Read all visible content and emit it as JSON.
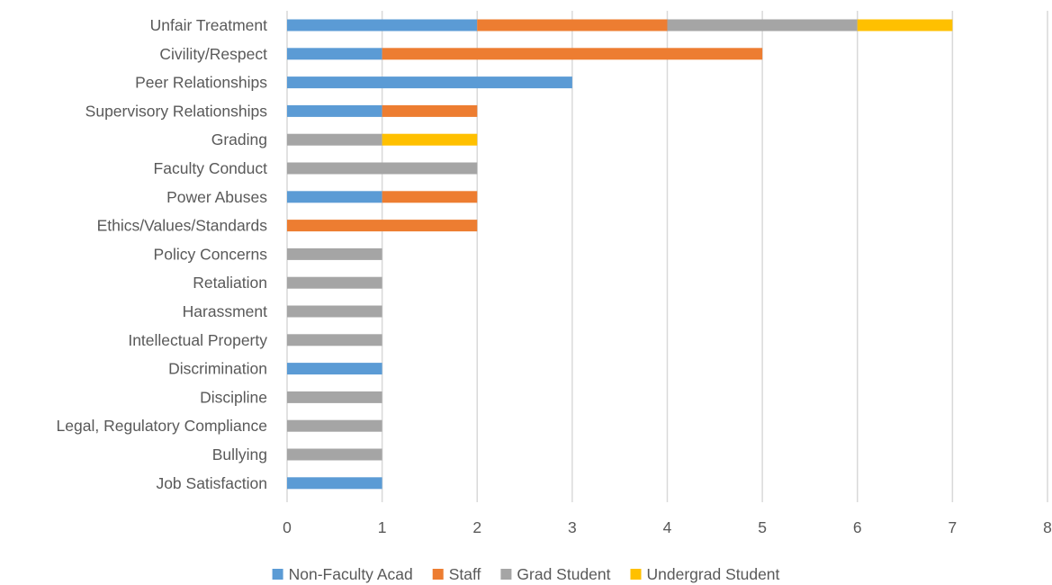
{
  "chart_data": {
    "type": "bar",
    "orientation": "horizontal",
    "stacked": true,
    "title": "",
    "xlabel": "",
    "ylabel": "",
    "categories": [
      "Unfair Treatment",
      "Civility/Respect",
      "Peer Relationships",
      "Supervisory Relationships",
      "Grading",
      "Faculty Conduct",
      "Power Abuses",
      "Ethics/Values/Standards",
      "Policy Concerns",
      "Retaliation",
      "Harassment",
      "Intellectual Property",
      "Discrimination",
      "Discipline",
      "Legal, Regulatory Compliance",
      "Bullying",
      "Job Satisfaction"
    ],
    "series": [
      {
        "name": "Non-Faculty Acad",
        "color": "#5b9bd5",
        "values": [
          2,
          1,
          3,
          1,
          0,
          0,
          1,
          0,
          0,
          0,
          0,
          0,
          1,
          0,
          0,
          0,
          1
        ]
      },
      {
        "name": "Staff",
        "color": "#ed7d31",
        "values": [
          2,
          4,
          0,
          1,
          0,
          0,
          1,
          2,
          0,
          0,
          0,
          0,
          0,
          0,
          0,
          0,
          0
        ]
      },
      {
        "name": "Grad Student",
        "color": "#a5a5a5",
        "values": [
          2,
          0,
          0,
          0,
          1,
          2,
          0,
          0,
          1,
          1,
          1,
          1,
          0,
          1,
          1,
          1,
          0
        ]
      },
      {
        "name": "Undergrad Student",
        "color": "#ffc000",
        "values": [
          1,
          0,
          0,
          0,
          1,
          0,
          0,
          0,
          0,
          0,
          0,
          0,
          0,
          0,
          0,
          0,
          0
        ]
      }
    ],
    "xlim": [
      0,
      8
    ],
    "xticks": [
      "0",
      "1",
      "2",
      "3",
      "4",
      "5",
      "6",
      "7",
      "8"
    ],
    "grid": "vertical",
    "legend": "bottom"
  }
}
